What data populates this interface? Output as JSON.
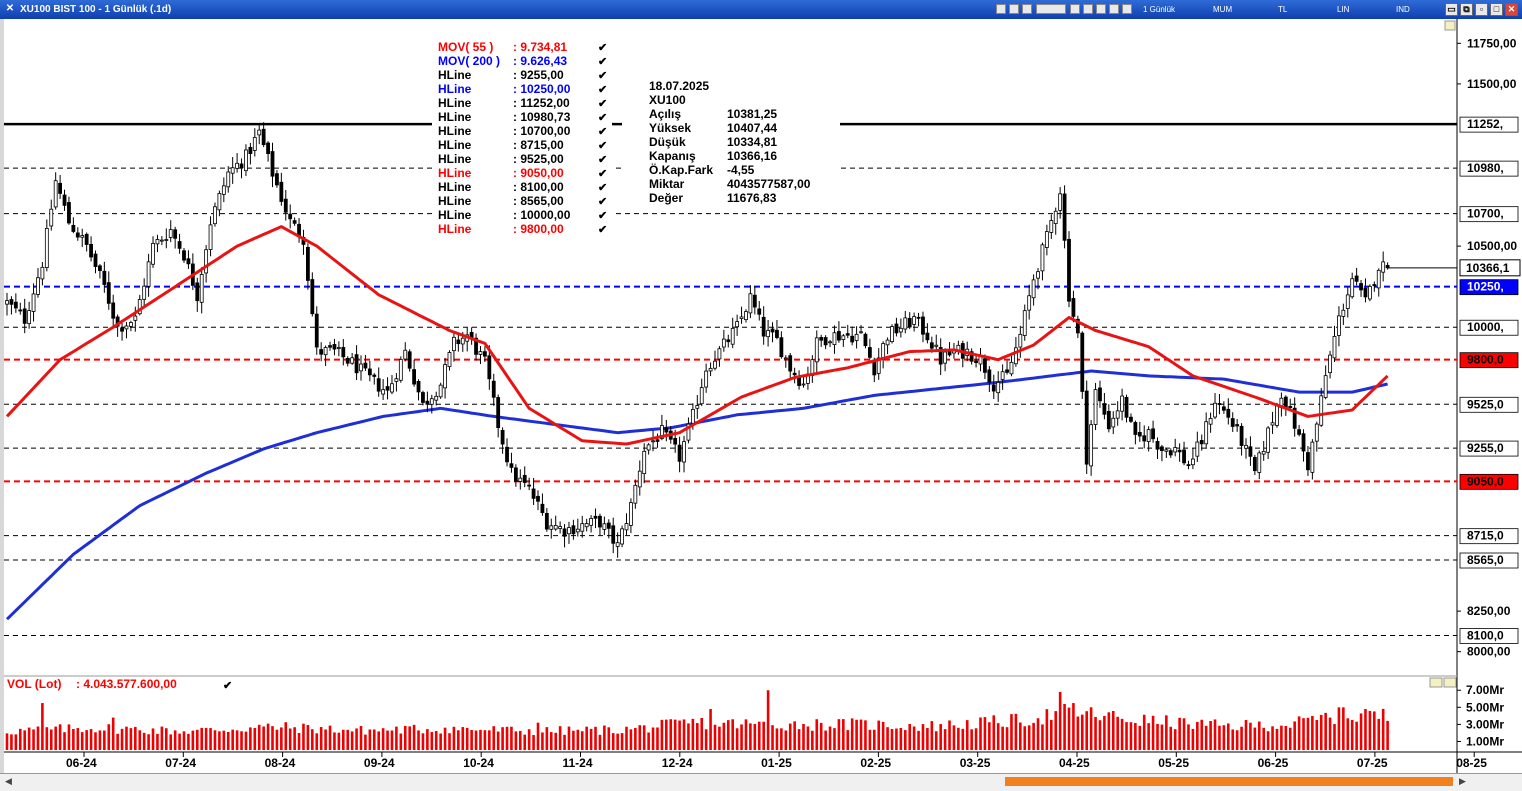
{
  "window": {
    "title": "XU100 BIST 100 - 1 Günlük (.1d)",
    "toolbar_items": [
      "1 Günlük",
      "MUM",
      "TL",
      "LIN",
      "IND"
    ]
  },
  "info_panel": {
    "date": "18.07.2025",
    "symbol": "XU100",
    "rows": [
      {
        "label": "Açılış",
        "value": "10381,25"
      },
      {
        "label": "Yüksek",
        "value": "10407,44"
      },
      {
        "label": "Düşük",
        "value": "10334,81"
      },
      {
        "label": "Kapanış",
        "value": "10366,16"
      },
      {
        "label": "Ö.Kap.Fark",
        "value": "-4,55"
      },
      {
        "label": "Miktar",
        "value": "4043577587,00"
      },
      {
        "label": "Değer",
        "value": "11676,83"
      }
    ]
  },
  "volume": {
    "label": "VOL (Lot)",
    "value": ": 4.043.577.600,00",
    "axis_labels": [
      {
        "text": "7.00Mr",
        "v": 7
      },
      {
        "text": "5.00Mr",
        "v": 5
      },
      {
        "text": "3.00Mr",
        "v": 3
      },
      {
        "text": "1.00Mr",
        "v": 1
      }
    ]
  },
  "chart_data": {
    "type": "candlestick",
    "symbol": "XU100",
    "ylim": [
      7850,
      11900
    ],
    "y_ticks": [
      {
        "text": "11750,00",
        "v": 11750
      },
      {
        "text": "11500,00",
        "v": 11500
      },
      {
        "text": "10500,00",
        "v": 10500
      },
      {
        "text": "8250,00",
        "v": 8250
      },
      {
        "text": "8000,00",
        "v": 8000
      }
    ],
    "x_labels": [
      "06-24",
      "07-24",
      "08-24",
      "09-24",
      "10-24",
      "11-24",
      "12-24",
      "01-25",
      "02-25",
      "03-25",
      "04-25",
      "05-25",
      "06-25",
      "07-25",
      "08-25"
    ],
    "legend": [
      {
        "name": "MOV( 55 )",
        "value": ": 9.734,81",
        "color": "#ff0000"
      },
      {
        "name": "MOV( 200 )",
        "value": ": 9.626,43",
        "color": "#0000ff"
      },
      {
        "name": "HLine",
        "value": ": 9255,00",
        "color": "#000000"
      },
      {
        "name": "HLine",
        "value": ": 10250,00",
        "color": "#0000ff"
      },
      {
        "name": "HLine",
        "value": ": 11252,00",
        "color": "#000000"
      },
      {
        "name": "HLine",
        "value": ": 10980,73",
        "color": "#000000"
      },
      {
        "name": "HLine",
        "value": ": 10700,00",
        "color": "#000000"
      },
      {
        "name": "HLine",
        "value": ": 8715,00",
        "color": "#000000"
      },
      {
        "name": "HLine",
        "value": ": 9525,00",
        "color": "#000000"
      },
      {
        "name": "HLine",
        "value": ": 9050,00",
        "color": "#ff0000"
      },
      {
        "name": "HLine",
        "value": ": 8100,00",
        "color": "#000000"
      },
      {
        "name": "HLine",
        "value": ": 8565,00",
        "color": "#000000"
      },
      {
        "name": "HLine",
        "value": ": 10000,00",
        "color": "#000000"
      },
      {
        "name": "HLine",
        "value": ": 9800,00",
        "color": "#ff0000"
      }
    ],
    "hlines": [
      {
        "value": 11252,
        "label": "11252,",
        "style": "solid",
        "color": "#000000",
        "box_bg": "#ffffff",
        "box_fg": "#000000"
      },
      {
        "value": 10980.73,
        "label": "10980,",
        "style": "dashed",
        "color": "#000000",
        "box_bg": "#ffffff",
        "box_fg": "#000000"
      },
      {
        "value": 10700,
        "label": "10700,",
        "style": "dashed",
        "color": "#000000",
        "box_bg": "#ffffff",
        "box_fg": "#000000"
      },
      {
        "value": 10250,
        "label": "10250,",
        "style": "dashed",
        "color": "#0000ff",
        "box_bg": "#0000ff",
        "box_fg": "#ffffff",
        "bold": true
      },
      {
        "value": 10000,
        "label": "10000,",
        "style": "dashed",
        "color": "#000000",
        "box_bg": "#ffffff",
        "box_fg": "#000000"
      },
      {
        "value": 9800,
        "label": "9800,0",
        "style": "dashed",
        "color": "#ff0000",
        "box_bg": "#ff0000",
        "box_fg": "#000000",
        "bold": true
      },
      {
        "value": 9525,
        "label": "9525,0",
        "style": "dashed",
        "color": "#000000",
        "box_bg": "#ffffff",
        "box_fg": "#000000"
      },
      {
        "value": 9255,
        "label": "9255,0",
        "style": "dashed",
        "color": "#000000",
        "box_bg": "#ffffff",
        "box_fg": "#000000"
      },
      {
        "value": 9050,
        "label": "9050,0",
        "style": "dashed",
        "color": "#ff0000",
        "box_bg": "#ff0000",
        "box_fg": "#000000",
        "bold": true
      },
      {
        "value": 8715,
        "label": "8715,0",
        "style": "dashed",
        "color": "#000000",
        "box_bg": "#ffffff",
        "box_fg": "#000000"
      },
      {
        "value": 8565,
        "label": "8565,0",
        "style": "dashed",
        "color": "#000000",
        "box_bg": "#ffffff",
        "box_fg": "#000000"
      },
      {
        "value": 8100,
        "label": "8100,0",
        "style": "dashed",
        "color": "#000000",
        "box_bg": "#ffffff",
        "box_fg": "#000000"
      }
    ],
    "last_price": {
      "value": 10366.16,
      "label": "10366,1"
    },
    "ohlc_anchors": [
      [
        0,
        10150
      ],
      [
        4,
        10050
      ],
      [
        8,
        10400
      ],
      [
        11,
        10900
      ],
      [
        14,
        10650
      ],
      [
        18,
        10500
      ],
      [
        22,
        10250
      ],
      [
        25,
        10000
      ],
      [
        29,
        10050
      ],
      [
        33,
        10500
      ],
      [
        37,
        10600
      ],
      [
        40,
        10450
      ],
      [
        43,
        10200
      ],
      [
        46,
        10650
      ],
      [
        50,
        10950
      ],
      [
        54,
        11050
      ],
      [
        57,
        11200
      ],
      [
        60,
        10950
      ],
      [
        64,
        10650
      ],
      [
        67,
        10550
      ],
      [
        70,
        9850
      ],
      [
        74,
        9850
      ],
      [
        78,
        9780
      ],
      [
        82,
        9680
      ],
      [
        86,
        9600
      ],
      [
        90,
        9850
      ],
      [
        94,
        9520
      ],
      [
        98,
        9650
      ],
      [
        101,
        9900
      ],
      [
        104,
        9950
      ],
      [
        108,
        9780
      ],
      [
        111,
        9400
      ],
      [
        114,
        9100
      ],
      [
        118,
        9000
      ],
      [
        122,
        8800
      ],
      [
        126,
        8750
      ],
      [
        130,
        8780
      ],
      [
        134,
        8800
      ],
      [
        138,
        8650
      ],
      [
        141,
        8900
      ],
      [
        144,
        9250
      ],
      [
        148,
        9350
      ],
      [
        152,
        9200
      ],
      [
        155,
        9450
      ],
      [
        158,
        9750
      ],
      [
        161,
        9850
      ],
      [
        165,
        10000
      ],
      [
        168,
        10180
      ],
      [
        171,
        9970
      ],
      [
        174,
        9920
      ],
      [
        177,
        9750
      ],
      [
        180,
        9650
      ],
      [
        183,
        9900
      ],
      [
        186,
        9950
      ],
      [
        189,
        9950
      ],
      [
        193,
        9950
      ],
      [
        196,
        9750
      ],
      [
        199,
        9950
      ],
      [
        202,
        10000
      ],
      [
        205,
        10050
      ],
      [
        208,
        9950
      ],
      [
        211,
        9800
      ],
      [
        214,
        9850
      ],
      [
        217,
        9850
      ],
      [
        220,
        9800
      ],
      [
        223,
        9650
      ],
      [
        226,
        9700
      ],
      [
        229,
        9950
      ],
      [
        232,
        10300
      ],
      [
        235,
        10550
      ],
      [
        238,
        10850
      ],
      [
        240,
        10200
      ],
      [
        242,
        9950
      ],
      [
        244,
        9200
      ],
      [
        246,
        9600
      ],
      [
        249,
        9400
      ],
      [
        252,
        9550
      ],
      [
        255,
        9300
      ],
      [
        258,
        9350
      ],
      [
        261,
        9250
      ],
      [
        264,
        9250
      ],
      [
        267,
        9150
      ],
      [
        270,
        9300
      ],
      [
        273,
        9550
      ],
      [
        276,
        9450
      ],
      [
        279,
        9300
      ],
      [
        282,
        9100
      ],
      [
        285,
        9350
      ],
      [
        288,
        9600
      ],
      [
        291,
        9400
      ],
      [
        294,
        9150
      ],
      [
        296,
        9400
      ],
      [
        298,
        9700
      ],
      [
        301,
        10050
      ],
      [
        304,
        10300
      ],
      [
        307,
        10150
      ],
      [
        310,
        10380
      ],
      [
        312,
        10366
      ]
    ],
    "ma55_anchors": [
      [
        0,
        9450
      ],
      [
        12,
        9800
      ],
      [
        24,
        10000
      ],
      [
        38,
        10250
      ],
      [
        52,
        10500
      ],
      [
        62,
        10620
      ],
      [
        70,
        10500
      ],
      [
        84,
        10200
      ],
      [
        100,
        9980
      ],
      [
        108,
        9900
      ],
      [
        118,
        9500
      ],
      [
        130,
        9300
      ],
      [
        140,
        9280
      ],
      [
        152,
        9350
      ],
      [
        166,
        9570
      ],
      [
        178,
        9690
      ],
      [
        190,
        9750
      ],
      [
        204,
        9850
      ],
      [
        214,
        9860
      ],
      [
        224,
        9800
      ],
      [
        232,
        9890
      ],
      [
        240,
        10060
      ],
      [
        246,
        9980
      ],
      [
        258,
        9880
      ],
      [
        268,
        9700
      ],
      [
        282,
        9570
      ],
      [
        294,
        9450
      ],
      [
        304,
        9490
      ],
      [
        312,
        9700
      ]
    ],
    "ma200_anchors": [
      [
        0,
        8200
      ],
      [
        15,
        8600
      ],
      [
        30,
        8900
      ],
      [
        45,
        9100
      ],
      [
        58,
        9250
      ],
      [
        70,
        9350
      ],
      [
        85,
        9450
      ],
      [
        98,
        9500
      ],
      [
        110,
        9450
      ],
      [
        124,
        9400
      ],
      [
        138,
        9350
      ],
      [
        150,
        9380
      ],
      [
        165,
        9460
      ],
      [
        180,
        9500
      ],
      [
        196,
        9580
      ],
      [
        210,
        9620
      ],
      [
        224,
        9660
      ],
      [
        236,
        9700
      ],
      [
        245,
        9730
      ],
      [
        258,
        9700
      ],
      [
        275,
        9680
      ],
      [
        292,
        9600
      ],
      [
        304,
        9600
      ],
      [
        312,
        9650
      ]
    ],
    "volume_anchors": [
      [
        0,
        2.2
      ],
      [
        20,
        2.6
      ],
      [
        40,
        2.2
      ],
      [
        60,
        2.7
      ],
      [
        80,
        2.3
      ],
      [
        100,
        2.5
      ],
      [
        120,
        2.2
      ],
      [
        140,
        2.4
      ],
      [
        155,
        3.2
      ],
      [
        170,
        3.0
      ],
      [
        190,
        3.0
      ],
      [
        210,
        2.8
      ],
      [
        230,
        3.5
      ],
      [
        240,
        4.5
      ],
      [
        255,
        3.5
      ],
      [
        275,
        2.8
      ],
      [
        290,
        3.0
      ],
      [
        300,
        4.0
      ],
      [
        312,
        4.0
      ]
    ],
    "volume_spikes": [
      [
        8,
        5.5
      ],
      [
        24,
        3.8
      ],
      [
        120,
        3.2
      ],
      [
        159,
        4.8
      ],
      [
        172,
        7.0
      ],
      [
        238,
        6.8
      ],
      [
        241,
        5.5
      ],
      [
        302,
        5.0
      ],
      [
        307,
        4.8
      ]
    ]
  }
}
